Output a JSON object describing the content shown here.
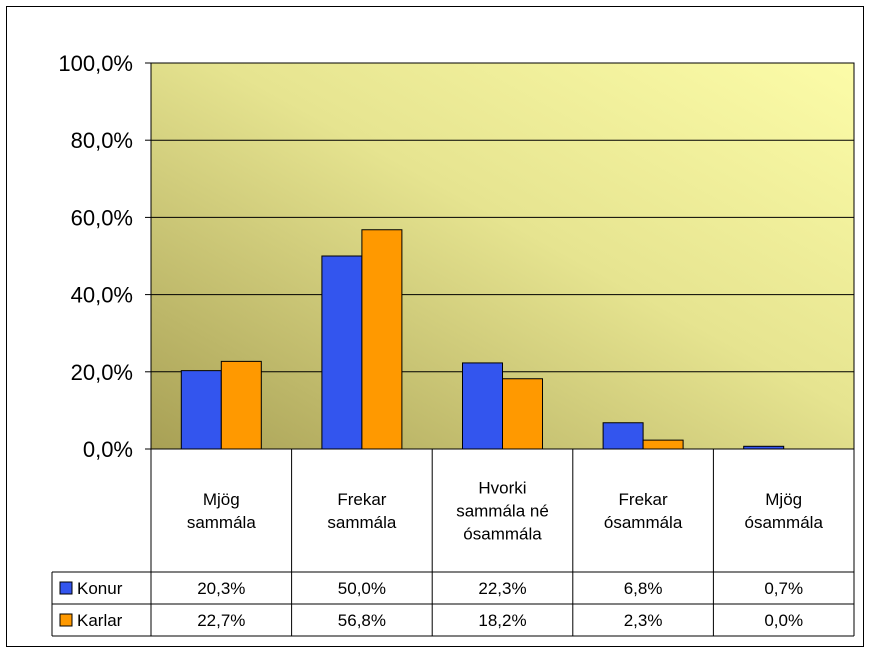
{
  "chart_data": {
    "type": "bar",
    "categories": [
      [
        "Mjög",
        "sammála"
      ],
      [
        "Frekar",
        "sammála"
      ],
      [
        "Hvorki",
        "sammála né",
        "ósammála"
      ],
      [
        "Frekar",
        "ósammála"
      ],
      [
        "Mjög",
        "ósammála"
      ]
    ],
    "series": [
      {
        "name": "Konur",
        "values": [
          20.3,
          50.0,
          22.3,
          6.8,
          0.7
        ],
        "labels": [
          "20,3%",
          "50,0%",
          "22,3%",
          "6,8%",
          "0,7%"
        ],
        "color": "#3355ee"
      },
      {
        "name": "Karlar",
        "values": [
          22.7,
          56.8,
          18.2,
          2.3,
          0.0
        ],
        "labels": [
          "22,7%",
          "56,8%",
          "18,2%",
          "2,3%",
          "0,0%"
        ],
        "color": "#ff9900"
      }
    ],
    "yticks": [
      "0,0%",
      "20,0%",
      "40,0%",
      "60,0%",
      "80,0%",
      "100,0%"
    ],
    "ylim": [
      0,
      100
    ],
    "grid": true,
    "legend": "data-table-left",
    "plot_background": [
      "#a8a055",
      "#fcfca8"
    ]
  }
}
